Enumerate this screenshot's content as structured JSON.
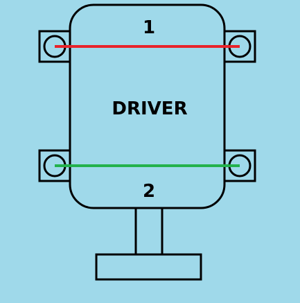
{
  "diagram": {
    "title": "DRIVER",
    "top_label": "1",
    "bottom_label": "2"
  },
  "colors": {
    "background": "#9fd9ea",
    "outline": "#000000",
    "top_line": "#e8232b",
    "bottom_line": "#23b24c"
  }
}
